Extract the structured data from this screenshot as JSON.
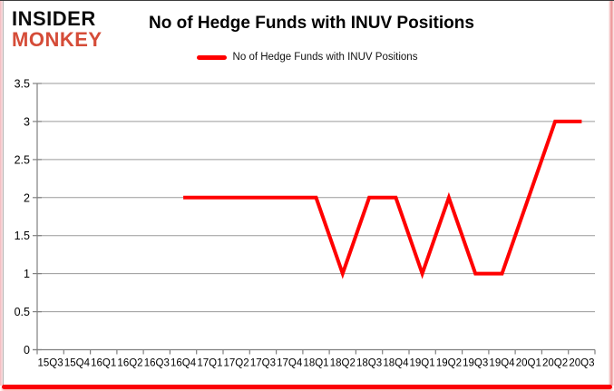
{
  "logo": {
    "line1": "INSIDER",
    "line2": "MONKEY"
  },
  "header": {
    "title": "No of Hedge Funds with INUV Positions"
  },
  "legend": {
    "label": "No of Hedge Funds with INUV Positions",
    "swatch_color": "#FF0000"
  },
  "colors": {
    "logo_insider": "#0c0c0c",
    "logo_monkey": "#d54c38",
    "line": "#FF0000",
    "grid": "#9a9a9a",
    "axis": "#808080",
    "frame_bottom_red": "#fb0007"
  },
  "chart_data": {
    "type": "line",
    "title": "No of Hedge Funds with INUV Positions",
    "categories": [
      "15Q3",
      "15Q4",
      "16Q1",
      "16Q2",
      "16Q3",
      "16Q4",
      "17Q1",
      "17Q2",
      "17Q3",
      "17Q4",
      "18Q1",
      "18Q2",
      "18Q3",
      "18Q4",
      "19Q1",
      "19Q2",
      "19Q3",
      "19Q4",
      "20Q1",
      "20Q2",
      "20Q3"
    ],
    "series": [
      {
        "name": "No of Hedge Funds with INUV Positions",
        "color": "#FF0000",
        "values": [
          null,
          null,
          null,
          null,
          null,
          2,
          2,
          2,
          2,
          2,
          2,
          1,
          2,
          2,
          1,
          2,
          1,
          1,
          2,
          3,
          3
        ]
      }
    ],
    "xlabel": "",
    "ylabel": "",
    "ylim": [
      0,
      3.5
    ],
    "ytick_step": 0.5,
    "ytick_labels": [
      "0",
      "0.5",
      "1",
      "1.5",
      "2",
      "2.5",
      "3",
      "3.5"
    ],
    "grid": true,
    "legend_position": "top"
  }
}
